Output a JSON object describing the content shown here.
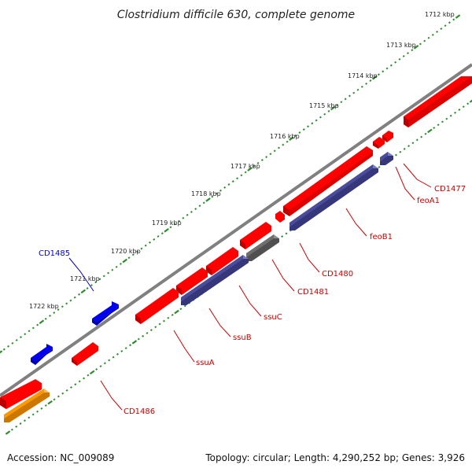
{
  "title": "Clostridium difficile 630, complete genome",
  "footer": {
    "accession": "Accession: NC_009089",
    "summary": "Topology: circular; Length: 4,290,252 bp; Genes: 3,926"
  },
  "colors": {
    "backbone": "#808080",
    "tick_dots": "#2e8b2e",
    "red_gene": "#ff0000",
    "blue_gene": "#0000ee",
    "slate_gene": "#4b4b9c",
    "gray_gene": "#6e6e6e",
    "orange_gene": "#ff9900",
    "red_label": "#cc0000",
    "blue_label": "#0000cc"
  },
  "ticks": [
    "1712 kbp",
    "1713 kbp",
    "1714 kbp",
    "1715 kbp",
    "1716 kbp",
    "1717 kbp",
    "1718 kbp",
    "1719 kbp",
    "1720 kbp",
    "1721 kbp",
    "1722 kbp"
  ],
  "gene_labels": [
    {
      "id": "cd1477",
      "text": "CD1477",
      "color": "red"
    },
    {
      "id": "feoa1",
      "text": "feoA1",
      "color": "red"
    },
    {
      "id": "feob1",
      "text": "feoB1",
      "color": "red"
    },
    {
      "id": "cd1480",
      "text": "CD1480",
      "color": "red"
    },
    {
      "id": "cd1481",
      "text": "CD1481",
      "color": "red"
    },
    {
      "id": "ssuc",
      "text": "ssuC",
      "color": "red"
    },
    {
      "id": "ssub",
      "text": "ssuB",
      "color": "red"
    },
    {
      "id": "ssua",
      "text": "ssuA",
      "color": "red"
    },
    {
      "id": "cd1486",
      "text": "CD1486",
      "color": "red"
    },
    {
      "id": "cd1485",
      "text": "CD1485",
      "color": "blue"
    }
  ]
}
